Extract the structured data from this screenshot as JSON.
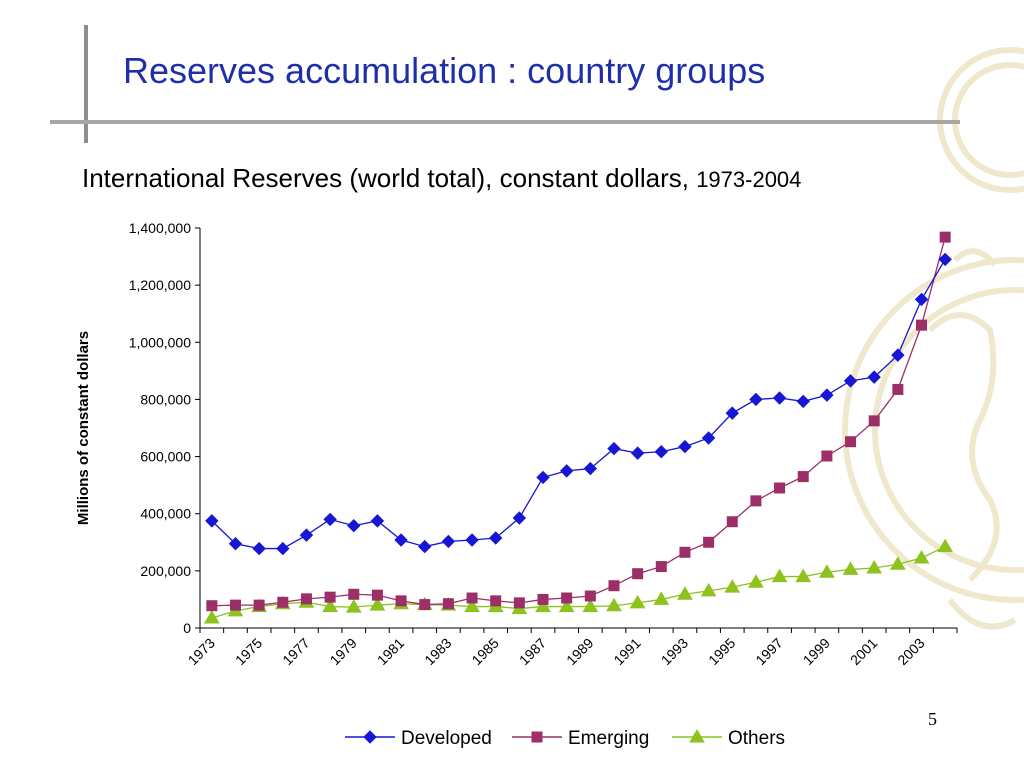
{
  "slide": {
    "title": "Reserves accumulation : country groups",
    "subtitle_main": "International Reserves (world total), constant dollars,",
    "subtitle_years": "1973-2004",
    "page_number": "5"
  },
  "colors": {
    "title": "#1f2fa8",
    "developed": "#1616d4",
    "emerging": "#9c2f67",
    "others": "#8dc21f",
    "watermark": "#efe6c8"
  },
  "chart_data": {
    "type": "line",
    "xlabel": "",
    "ylabel": "Millions of constant dollars",
    "x": [
      1973,
      1974,
      1975,
      1976,
      1977,
      1978,
      1979,
      1980,
      1981,
      1982,
      1983,
      1984,
      1985,
      1986,
      1987,
      1988,
      1989,
      1990,
      1991,
      1992,
      1993,
      1994,
      1995,
      1996,
      1997,
      1998,
      1999,
      2000,
      2001,
      2002,
      2003,
      2004
    ],
    "x_tick_labels": [
      "1973",
      "1975",
      "1977",
      "1979",
      "1981",
      "1983",
      "1985",
      "1987",
      "1989",
      "1991",
      "1993",
      "1995",
      "1997",
      "1999",
      "2001",
      "2003"
    ],
    "ylim": [
      0,
      1400000
    ],
    "y_tick_labels": [
      "0",
      "200,000",
      "400,000",
      "600,000",
      "800,000",
      "1,000,000",
      "1,200,000",
      "1,400,000"
    ],
    "y_ticks": [
      0,
      200000,
      400000,
      600000,
      800000,
      1000000,
      1200000,
      1400000
    ],
    "grid": false,
    "legend_position": "bottom",
    "series": [
      {
        "name": "Developed",
        "marker": "diamond",
        "values": [
          375000,
          295000,
          278000,
          278000,
          325000,
          380000,
          358000,
          375000,
          308000,
          285000,
          303000,
          308000,
          315000,
          385000,
          527000,
          550000,
          558000,
          628000,
          612000,
          617000,
          635000,
          665000,
          752000,
          800000,
          805000,
          793000,
          815000,
          865000,
          878000,
          955000,
          1150000,
          1290000
        ]
      },
      {
        "name": "Emerging",
        "marker": "square",
        "values": [
          78000,
          80000,
          80000,
          90000,
          102000,
          108000,
          118000,
          115000,
          95000,
          82000,
          85000,
          105000,
          95000,
          88000,
          100000,
          105000,
          112000,
          148000,
          190000,
          215000,
          265000,
          300000,
          372000,
          445000,
          490000,
          530000,
          602000,
          652000,
          725000,
          835000,
          1060000,
          1368000
        ]
      },
      {
        "name": "Others",
        "marker": "triangle",
        "values": [
          35000,
          60000,
          75000,
          85000,
          90000,
          75000,
          73000,
          80000,
          85000,
          82000,
          80000,
          75000,
          75000,
          68000,
          75000,
          75000,
          75000,
          78000,
          88000,
          100000,
          118000,
          130000,
          143000,
          160000,
          180000,
          180000,
          195000,
          205000,
          210000,
          223000,
          245000,
          285000
        ]
      }
    ]
  }
}
